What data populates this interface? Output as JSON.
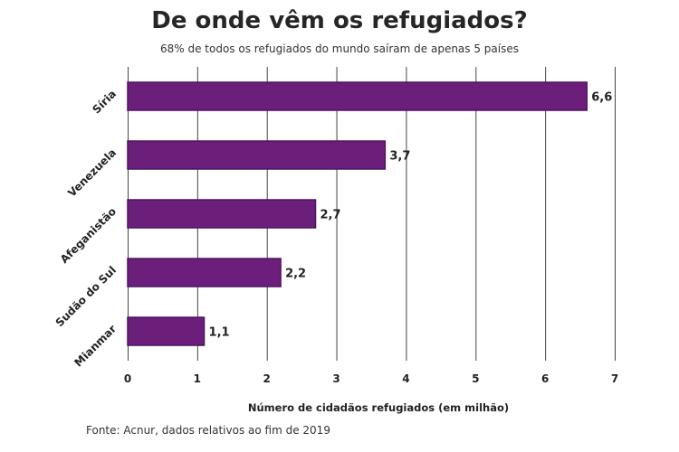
{
  "chart_data": {
    "type": "bar",
    "orientation": "horizontal",
    "title": "De onde vêm os refugiados?",
    "subtitle": "68% de todos os refugiados do mundo saíram de apenas 5 países",
    "categories": [
      "Síria",
      "Venezuela",
      "Afeganistão",
      "Sudão do Sul",
      "Mianmar"
    ],
    "values": [
      6.6,
      3.7,
      2.7,
      2.2,
      1.1
    ],
    "value_labels": [
      "6,6",
      "3,7",
      "2,7",
      "2,2",
      "1,1"
    ],
    "xlabel": "Número de cidadãos refugiados (em milhão)",
    "ylabel": "",
    "xlim": [
      0,
      7
    ],
    "xticks": [
      "0",
      "1",
      "2",
      "3",
      "4",
      "5",
      "6",
      "7"
    ],
    "grid": "vertical",
    "bar_color": "#6b1f7a",
    "bar_edge_color": "#4f1460",
    "source": "Fonte: Acnur, dados relativos ao fim de 2019"
  }
}
